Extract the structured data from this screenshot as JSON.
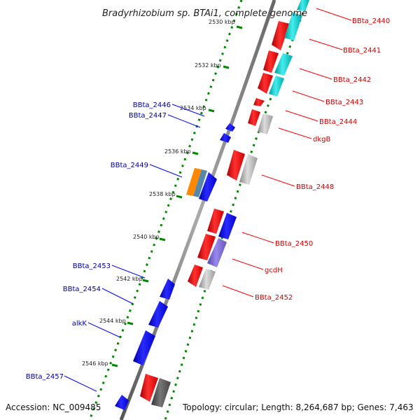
{
  "title": "Bradyrhizobium sp. BTAi1, complete genome",
  "footer": {
    "accession": "Accession: NC_009485",
    "summary": "Topology: circular; Length: 8,264,687 bp; Genes: 7,463"
  },
  "colors": {
    "forward_cds": "#ff0000",
    "reverse_cds": "#0000ff",
    "forward_label": "#cc0000",
    "reverse_label": "#000099",
    "gc_skew_tick": "#008800",
    "backbone": "#888888",
    "orf_gray": "#aaaaaa",
    "orf_cyan": "#00cccc",
    "orf_purple": "#7766dd",
    "orf_orange": "#ff8800",
    "orf_steel": "#5588aa"
  },
  "ticks": [
    "2530 kbp",
    "2532 kbp",
    "2534 kbp",
    "2536 kbp",
    "2538 kbp",
    "2540 kbp",
    "2542 kbp",
    "2544 kbp",
    "2546 kbp"
  ],
  "forward_genes": [
    "BBta_2440",
    "BBta_2441",
    "BBta_2442",
    "BBta_2443",
    "BBta_2444",
    "dkgB",
    "BBta_2448",
    "BBta_2450",
    "gcdH",
    "BBta_2452"
  ],
  "reverse_genes": [
    "BBta_2446",
    "BBta_2447",
    "BBta_2449",
    "BBta_2453",
    "BBta_2454",
    "alkK",
    "BBta_2457"
  ]
}
